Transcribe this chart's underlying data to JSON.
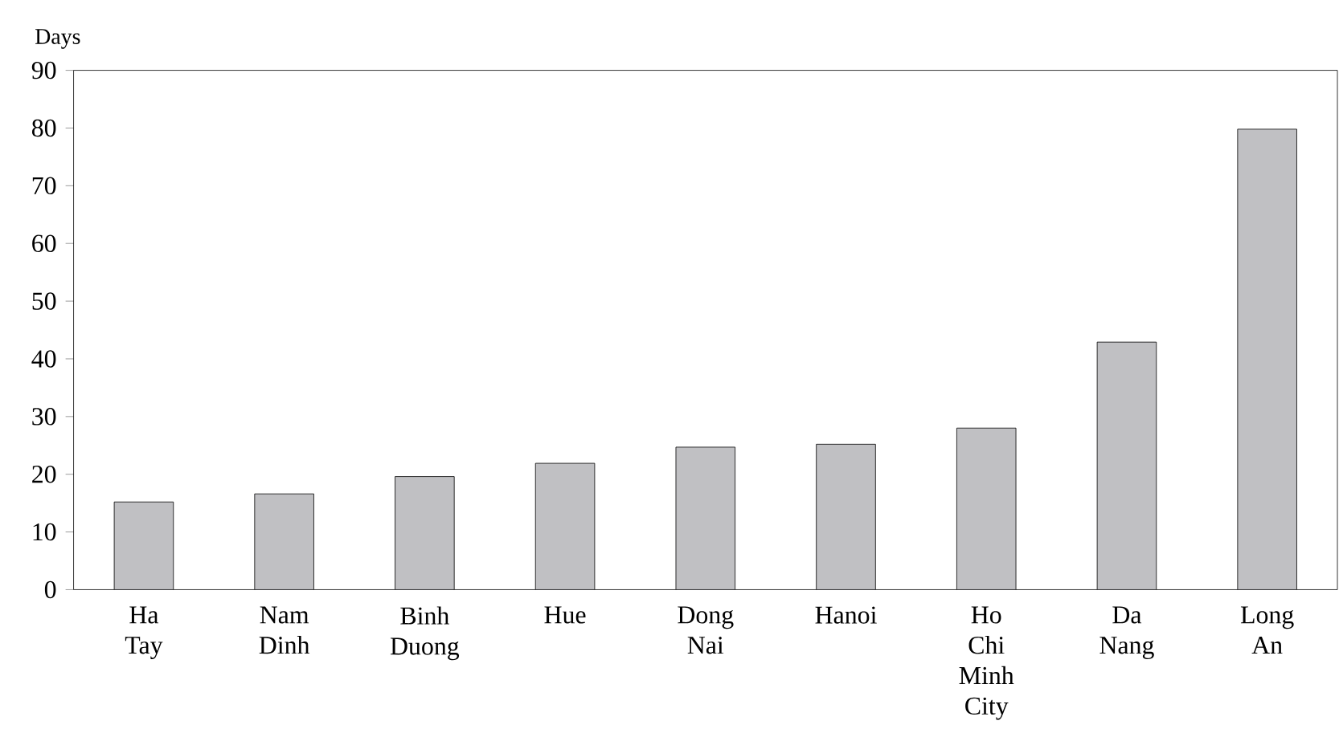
{
  "chart_data": {
    "type": "bar",
    "ylabel": "Days",
    "categories": [
      "Ha Tay",
      "Nam Dinh",
      "Binh Duong",
      "Hue",
      "Dong Nai",
      "Hanoi",
      "Ho Chi Minh City",
      "Da Nang",
      "Long An"
    ],
    "values": [
      15.2,
      16.6,
      19.6,
      21.9,
      24.7,
      25.2,
      28.0,
      42.9,
      79.8
    ],
    "color": "#c0c0c3",
    "ylim": [
      0,
      90
    ],
    "yticks": [
      0,
      10,
      20,
      30,
      40,
      50,
      60,
      70,
      80,
      90
    ]
  }
}
